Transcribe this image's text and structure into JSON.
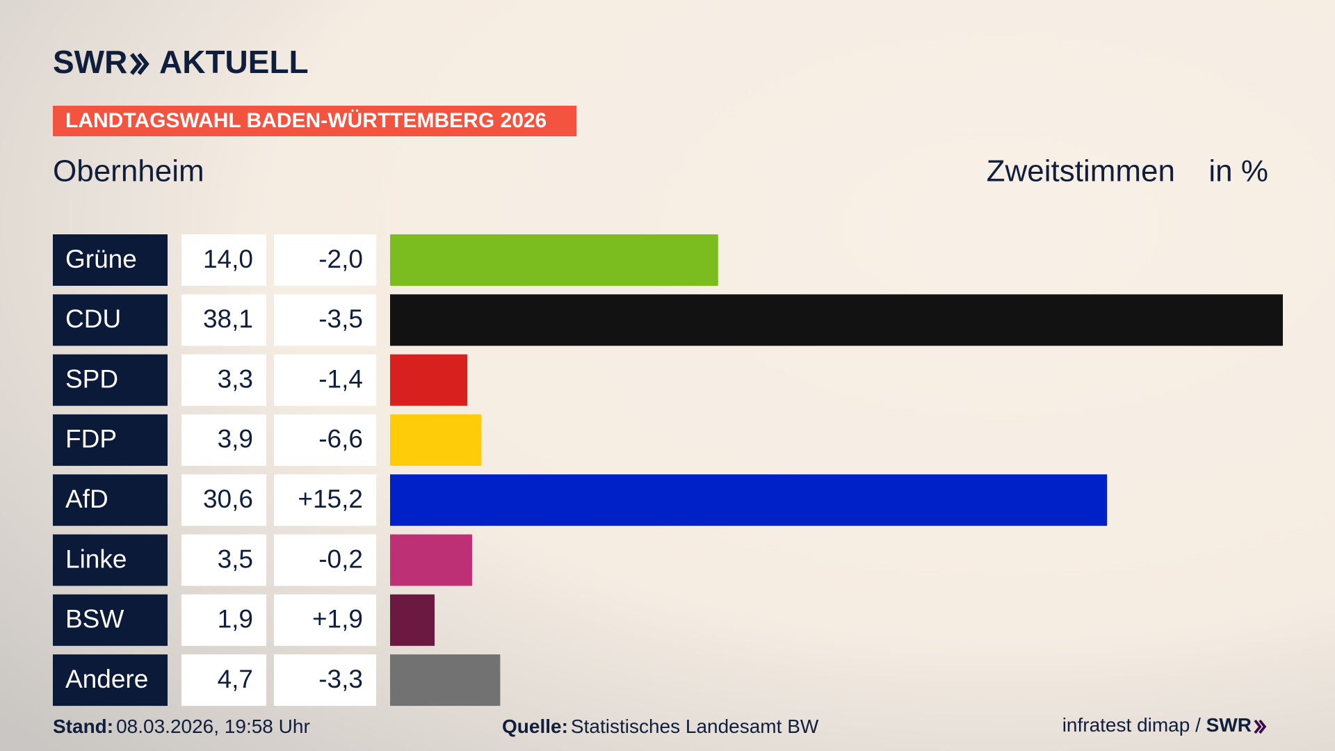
{
  "header": {
    "brand": "SWR",
    "product": "AKTUELL",
    "banner": "LANDTAGSWAHL BADEN-WÜRTTEMBERG 2026"
  },
  "chart_data": {
    "type": "bar",
    "orientation": "horizontal",
    "title": "Obernheim",
    "subtitle": "Zweitstimmen",
    "unit_label": "in %",
    "categories": [
      "Grüne",
      "CDU",
      "SPD",
      "FDP",
      "AfD",
      "Linke",
      "BSW",
      "Andere"
    ],
    "values": [
      14.0,
      38.1,
      3.3,
      3.9,
      30.6,
      3.5,
      1.9,
      4.7
    ],
    "value_labels": [
      "14,0",
      "38,1",
      "3,3",
      "3,9",
      "30,6",
      "3,5",
      "1,9",
      "4,7"
    ],
    "changes": [
      -2.0,
      -3.5,
      -1.4,
      -6.6,
      15.2,
      -0.2,
      1.9,
      -3.3
    ],
    "change_labels": [
      "-2,0",
      "-3,5",
      "-1,4",
      "-6,6",
      "+15,2",
      "-0,2",
      "+1,9",
      "-3,3"
    ],
    "colors": [
      "#7bbd1f",
      "#121212",
      "#d8201f",
      "#ffcc0a",
      "#0021c8",
      "#bd3075",
      "#6b1940",
      "#727272"
    ]
  },
  "footer": {
    "stand_label": "Stand:",
    "stand": "08.03.2026, 19:58 Uhr",
    "source_label": "Quelle:",
    "source": "Statistisches Landesamt BW",
    "credit": "infratest dimap / ",
    "credit_brand": "SWR"
  }
}
